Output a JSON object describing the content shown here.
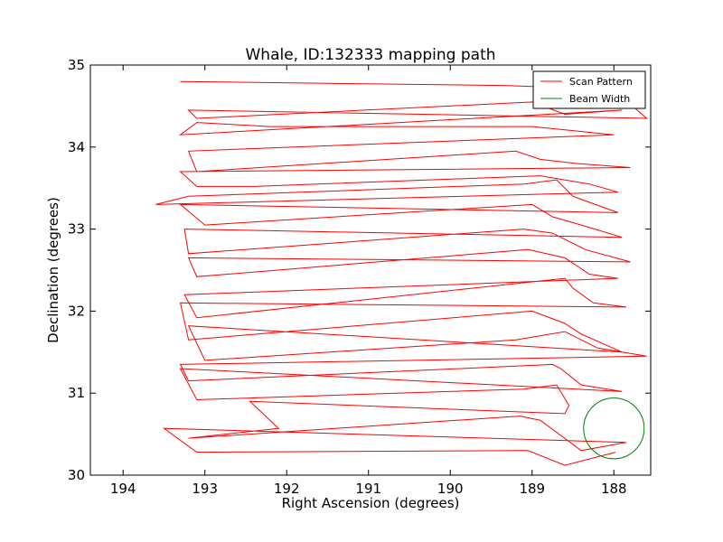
{
  "chart_data": {
    "type": "line",
    "title": "Whale, ID:132333 mapping path",
    "xlabel": "Right Ascension (degrees)",
    "ylabel": "Declination (degrees)",
    "xlim": [
      194.4,
      187.55
    ],
    "ylim": [
      30,
      35
    ],
    "x_ticks": [
      194,
      193,
      192,
      191,
      190,
      189,
      188
    ],
    "x_tick_labels": [
      "194",
      "193",
      "192",
      "191",
      "190",
      "189",
      "188"
    ],
    "y_ticks": [
      30,
      31,
      32,
      33,
      34,
      35
    ],
    "y_tick_labels": [
      "30",
      "31",
      "32",
      "33",
      "34",
      "35"
    ],
    "x_inverted": true,
    "grid": false,
    "legend_position": "upper right",
    "colors": {
      "scan": "#ff0000",
      "beam": "#008000"
    },
    "series": [
      {
        "name": "Scan Pattern",
        "x": [
          187.98,
          188.6,
          189.05,
          193.1,
          193.5,
          187.85,
          188.4,
          188.9,
          189.15,
          193.2,
          192.1,
          192.45,
          188.6,
          188.55,
          188.7,
          189.1,
          193.1,
          193.3,
          187.9,
          188.4,
          188.65,
          188.75,
          193.2,
          193.3,
          187.6,
          188.2,
          188.6,
          189.2,
          193.0,
          193.2,
          187.9,
          188.4,
          188.6,
          189.0,
          193.2,
          193.3,
          187.85,
          188.25,
          188.5,
          188.6,
          193.1,
          193.25,
          187.95,
          188.3,
          188.6,
          189.05,
          193.1,
          193.2,
          187.8,
          188.35,
          188.75,
          189.1,
          193.2,
          193.25,
          187.9,
          188.4,
          188.75,
          189.0,
          193.0,
          193.3,
          187.95,
          188.5,
          188.7,
          189.1,
          193.2,
          193.6,
          187.95,
          188.3,
          188.9,
          192.4,
          193.1,
          193.3,
          187.8,
          188.45,
          188.9,
          189.2,
          193.1,
          193.2,
          188.0,
          188.5,
          189.0,
          192.2,
          193.1,
          193.3,
          187.9,
          188.6,
          189.0,
          193.1,
          193.2,
          187.6,
          188.0,
          189.3,
          193.3
        ],
        "y": [
          30.28,
          30.12,
          30.3,
          30.28,
          30.57,
          30.4,
          30.3,
          30.67,
          30.72,
          30.45,
          30.57,
          30.9,
          30.75,
          30.85,
          31.1,
          31.05,
          30.92,
          31.3,
          31.02,
          31.1,
          31.3,
          31.35,
          31.15,
          31.35,
          31.45,
          31.55,
          31.75,
          31.65,
          31.4,
          31.82,
          31.5,
          31.72,
          31.85,
          32.0,
          31.65,
          32.1,
          32.05,
          32.1,
          32.28,
          32.4,
          31.92,
          32.2,
          32.4,
          32.45,
          32.65,
          32.75,
          32.42,
          32.65,
          32.6,
          32.75,
          32.95,
          33.0,
          32.7,
          33.0,
          32.9,
          33.05,
          33.15,
          33.3,
          33.05,
          33.3,
          33.2,
          33.4,
          33.6,
          33.55,
          33.4,
          33.3,
          33.45,
          33.55,
          33.65,
          33.52,
          33.52,
          33.7,
          33.75,
          33.8,
          33.85,
          33.95,
          33.7,
          33.95,
          34.15,
          34.2,
          34.25,
          34.25,
          34.3,
          34.15,
          34.45,
          34.4,
          34.55,
          34.35,
          34.45,
          34.35,
          34.7,
          34.75,
          34.8
        ]
      },
      {
        "name": "Beam Width",
        "shape": "circle",
        "center": [
          188.0,
          30.57
        ],
        "radius": 0.37
      }
    ]
  }
}
